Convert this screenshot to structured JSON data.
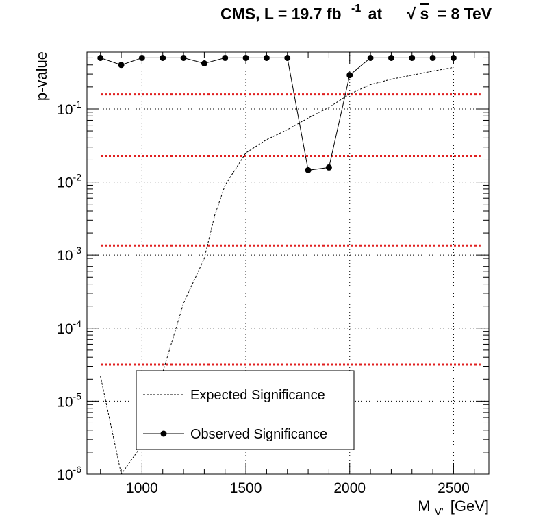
{
  "chart_data": {
    "type": "line",
    "title": {
      "main": "CMS, L = 19.7 fb",
      "superscript": "-1",
      "after": "at",
      "sqrt_symbol": "√",
      "sqrt_arg": "s",
      "energy": "= 8 TeV"
    },
    "xlabel": {
      "main": "M",
      "subscript": "V'",
      "unit": "[GeV]"
    },
    "ylabel": "p-value",
    "xlim": [
      735,
      2670
    ],
    "ylim": [
      1e-06,
      0.6
    ],
    "log_y": true,
    "grid": true,
    "x_ticks": [
      {
        "value": 1000,
        "label": "1000"
      },
      {
        "value": 1500,
        "label": "1500"
      },
      {
        "value": 2000,
        "label": "2000"
      },
      {
        "value": 2500,
        "label": "2500"
      }
    ],
    "y_ticks": [
      {
        "value": 1e-06,
        "base": "10",
        "exp": "-6"
      },
      {
        "value": 1e-05,
        "base": "10",
        "exp": "-5"
      },
      {
        "value": 0.0001,
        "base": "10",
        "exp": "-4"
      },
      {
        "value": 0.001,
        "base": "10",
        "exp": "-3"
      },
      {
        "value": 0.01,
        "base": "10",
        "exp": "-2"
      },
      {
        "value": 0.1,
        "base": "10",
        "exp": "-1"
      }
    ],
    "sigma_lines": [
      0.1587,
      0.02275,
      0.00135,
      3.17e-05
    ],
    "sigma_line_color": "#e02020",
    "series": [
      {
        "name": "Expected Significance",
        "style": "dashed",
        "color": "#000000",
        "x": [
          800,
          900,
          1000,
          1100,
          1200,
          1300,
          1350,
          1400,
          1500,
          1600,
          1700,
          1800,
          1900,
          2000,
          2100,
          2200,
          2300,
          2400,
          2500
        ],
        "y": [
          2.2e-05,
          1e-06,
          2.5e-06,
          2.5e-05,
          0.00022,
          0.0009,
          0.0035,
          0.009,
          0.025,
          0.038,
          0.052,
          0.075,
          0.105,
          0.16,
          0.215,
          0.255,
          0.29,
          0.33,
          0.37
        ]
      },
      {
        "name": "Observed Significance",
        "style": "solid-markers",
        "color": "#000000",
        "x": [
          800,
          900,
          1000,
          1100,
          1200,
          1300,
          1400,
          1500,
          1600,
          1700,
          1800,
          1900,
          2000,
          2100,
          2200,
          2300,
          2400,
          2500
        ],
        "y": [
          0.5,
          0.4,
          0.5,
          0.5,
          0.5,
          0.42,
          0.5,
          0.5,
          0.5,
          0.5,
          0.0145,
          0.0158,
          0.29,
          0.5,
          0.5,
          0.5,
          0.5,
          0.5
        ]
      }
    ],
    "legend": {
      "position": "bottom-left"
    }
  }
}
